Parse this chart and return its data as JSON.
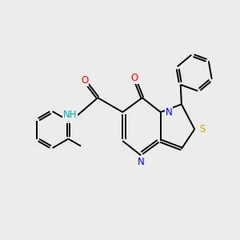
{
  "background_color": "#ebebeb",
  "atom_colors": {
    "C": "#000000",
    "N": "#0000ff",
    "O": "#ff0000",
    "S": "#ccaa00"
  },
  "lw": 1.4,
  "fs": 8.5,
  "xlim": [
    0.5,
    9.5
  ],
  "ylim": [
    1.5,
    9.0
  ],
  "figsize": [
    3.0,
    3.0
  ],
  "dpi": 100
}
